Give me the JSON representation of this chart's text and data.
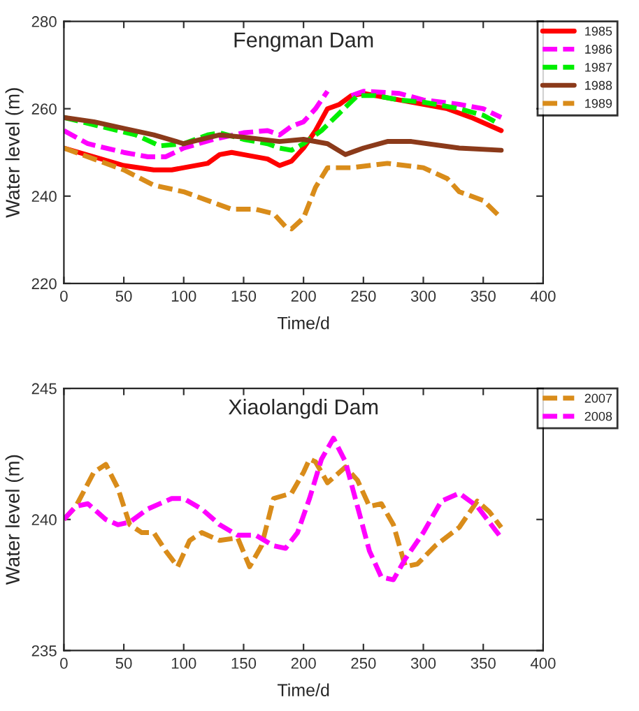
{
  "chart_data": [
    {
      "type": "line",
      "title": "Fengman Dam",
      "xlabel": "Time/d",
      "ylabel": "Water level (m)",
      "xlim": [
        0,
        400
      ],
      "xticks": [
        0,
        50,
        100,
        150,
        200,
        250,
        300,
        350,
        400
      ],
      "ylim": [
        220,
        280
      ],
      "yticks": [
        220,
        240,
        260,
        280
      ],
      "legend": "top right",
      "grid": false,
      "series": [
        {
          "name": "1985",
          "color": "#ff0000",
          "line_style": "solid",
          "x": [
            0,
            25,
            50,
            75,
            90,
            100,
            120,
            130,
            140,
            150,
            170,
            180,
            190,
            200,
            210,
            220,
            230,
            240,
            250,
            260,
            280,
            300,
            320,
            340,
            365
          ],
          "values": [
            251,
            249,
            247,
            246,
            246,
            246.5,
            247.5,
            249.5,
            250,
            249.5,
            248.5,
            247,
            248,
            251,
            255,
            260,
            261,
            263,
            263.5,
            263,
            262,
            261,
            260,
            258,
            255
          ]
        },
        {
          "name": "1986",
          "color": "#ff00ff",
          "line_style": "dashed",
          "x": [
            0,
            20,
            50,
            70,
            85,
            100,
            125,
            150,
            170,
            180,
            190,
            200,
            210,
            220,
            230,
            240,
            250,
            280,
            300,
            330,
            350,
            365
          ],
          "values": [
            255,
            252,
            250,
            249,
            249,
            251,
            253,
            254.5,
            255,
            254,
            256,
            257,
            260,
            264,
            null,
            263,
            264,
            263.5,
            262,
            261,
            260,
            258
          ]
        },
        {
          "name": "1987",
          "color": "#00ee00",
          "line_style": "dashed",
          "x": [
            0,
            30,
            60,
            80,
            100,
            120,
            130,
            150,
            170,
            180,
            190,
            200,
            215,
            230,
            245,
            260,
            280,
            300,
            330,
            350,
            360
          ],
          "values": [
            258,
            256,
            254,
            251.5,
            252,
            254,
            254.5,
            253,
            252,
            251,
            250.5,
            252,
            255,
            259,
            263,
            263,
            262,
            261.5,
            260,
            258.5,
            257
          ]
        },
        {
          "name": "1988",
          "color": "#8b3a1a",
          "line_style": "solid",
          "x": [
            0,
            25,
            50,
            75,
            100,
            130,
            150,
            180,
            200,
            220,
            235,
            250,
            270,
            290,
            330,
            365
          ],
          "values": [
            258,
            257,
            255.5,
            254,
            252,
            254,
            253.5,
            252.5,
            253,
            252,
            249.5,
            251,
            252.5,
            252.5,
            251,
            250.5
          ]
        },
        {
          "name": "1989",
          "color": "#d98c1a",
          "line_style": "dashed",
          "x": [
            0,
            25,
            50,
            75,
            100,
            125,
            140,
            160,
            175,
            185,
            190,
            200,
            210,
            220,
            240,
            270,
            300,
            320,
            330,
            350,
            365
          ],
          "values": [
            251,
            248.5,
            246,
            242.5,
            241,
            238.5,
            237,
            237,
            236,
            233,
            232.5,
            235,
            242,
            246.5,
            246.5,
            247.5,
            246.5,
            244,
            241,
            239,
            235
          ]
        }
      ]
    },
    {
      "type": "line",
      "title": "Xiaolangdi Dam",
      "xlabel": "Time/d",
      "ylabel": "Water level (m)",
      "xlim": [
        0,
        400
      ],
      "xticks": [
        0,
        50,
        100,
        150,
        200,
        250,
        300,
        350,
        400
      ],
      "ylim": [
        235,
        245
      ],
      "yticks": [
        235,
        240,
        245
      ],
      "legend": "top right",
      "grid": false,
      "series": [
        {
          "name": "2007",
          "color": "#d98c1a",
          "line_style": "dashed",
          "x": [
            0,
            10,
            25,
            35,
            45,
            55,
            65,
            75,
            85,
            95,
            105,
            115,
            130,
            145,
            155,
            165,
            175,
            190,
            200,
            205,
            210,
            220,
            235,
            245,
            255,
            265,
            275,
            285,
            295,
            310,
            330,
            345,
            355,
            365
          ],
          "values": [
            240,
            240.5,
            241.8,
            242.1,
            241.2,
            239.8,
            239.5,
            239.5,
            238.8,
            238.2,
            239.2,
            239.5,
            239.2,
            239.3,
            238.2,
            239,
            240.8,
            241,
            241.8,
            242.3,
            242.2,
            241.4,
            242,
            241.5,
            240.5,
            240.6,
            239.8,
            238.2,
            238.3,
            239,
            239.7,
            240.7,
            240.3,
            239.7
          ]
        },
        {
          "name": "2008",
          "color": "#ff00ff",
          "line_style": "dashed",
          "x": [
            0,
            10,
            20,
            35,
            45,
            55,
            70,
            90,
            100,
            115,
            130,
            145,
            160,
            175,
            185,
            195,
            205,
            215,
            225,
            235,
            245,
            255,
            265,
            275,
            285,
            300,
            315,
            330,
            345,
            360,
            365
          ],
          "values": [
            240,
            240.5,
            240.6,
            240,
            239.8,
            239.9,
            240.4,
            240.8,
            240.8,
            240.4,
            239.8,
            239.4,
            239.4,
            239,
            238.9,
            239.5,
            240.8,
            242.3,
            243.1,
            242.2,
            240.5,
            238.8,
            237.8,
            237.7,
            238.5,
            239.5,
            240.7,
            241,
            240.5,
            239.6,
            239.3
          ]
        }
      ]
    }
  ]
}
